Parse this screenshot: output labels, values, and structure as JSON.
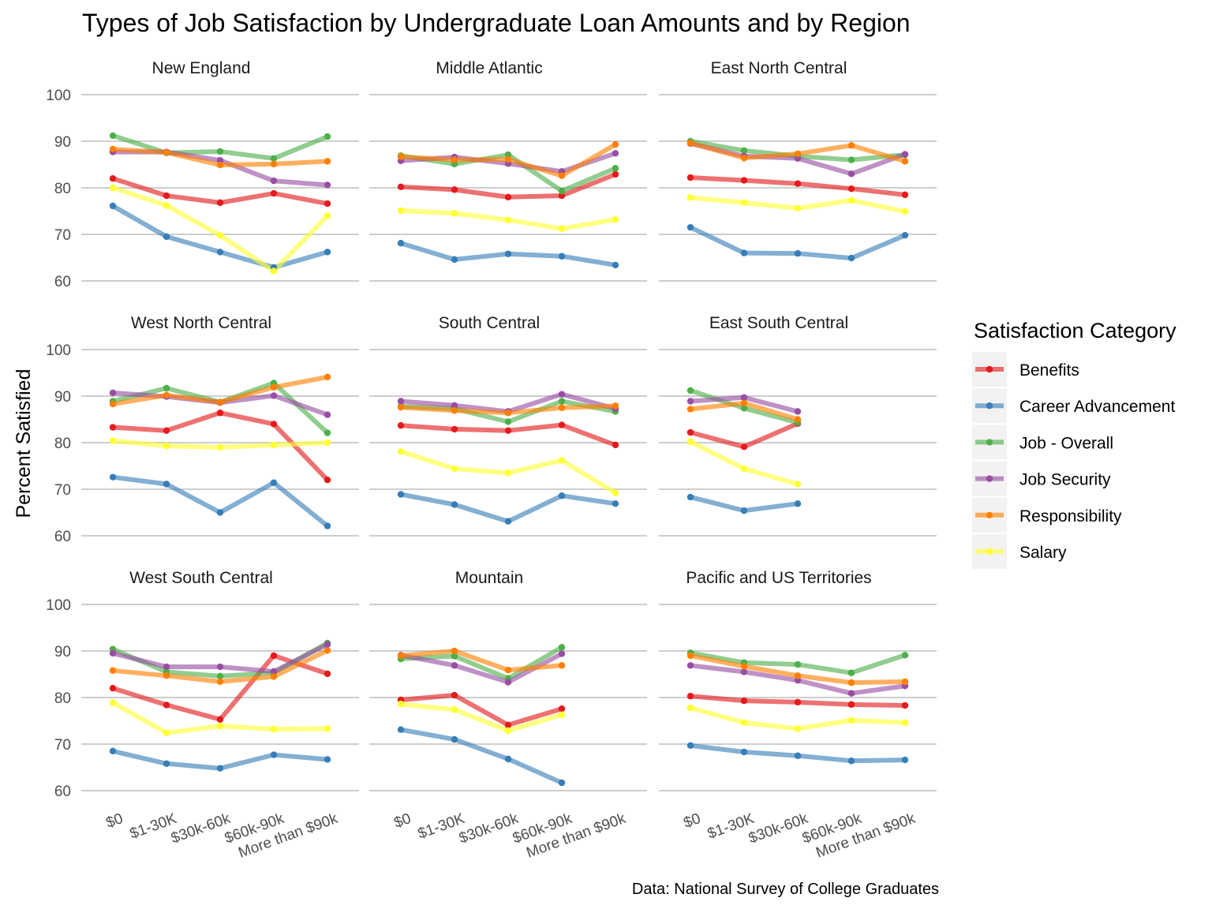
{
  "chart_data": {
    "type": "line",
    "title": "Types of Job Satisfaction by Undergraduate Loan Amounts and by Region",
    "ylabel": "Percent Satisfied",
    "xlabel": "",
    "caption": "Data: National Survey of College Graduates",
    "ylim": [
      60,
      100
    ],
    "yticks": [
      60,
      70,
      80,
      90,
      100
    ],
    "categories": [
      "$0",
      "$1-30K",
      "$30k-60k",
      "$60k-90k",
      "More than $90k"
    ],
    "legend": {
      "title": "Satisfaction Category",
      "position": "right",
      "items": [
        {
          "name": "Benefits",
          "color": "#e41a1c"
        },
        {
          "name": "Career Advancement",
          "color": "#377eb8"
        },
        {
          "name": "Job - Overall",
          "color": "#4daf4a"
        },
        {
          "name": "Job Security",
          "color": "#984ea3"
        },
        {
          "name": "Responsibility",
          "color": "#ff7f00"
        },
        {
          "name": "Salary",
          "color": "#ffff33"
        }
      ]
    },
    "grid": "horizontal major",
    "panels": [
      {
        "region": "New England",
        "series": {
          "Benefits": [
            82.0,
            78.3,
            76.8,
            78.8,
            76.6
          ],
          "Career Advancement": [
            76.1,
            69.5,
            66.2,
            62.9,
            66.2
          ],
          "Job - Overall": [
            91.2,
            87.5,
            87.8,
            86.3,
            91.0
          ],
          "Job Security": [
            87.7,
            87.7,
            85.9,
            81.5,
            80.6
          ],
          "Responsibility": [
            88.3,
            87.6,
            84.9,
            85.1,
            85.7
          ],
          "Salary": [
            80.0,
            76.2,
            69.8,
            62.1,
            74.0
          ]
        }
      },
      {
        "region": "Middle Atlantic",
        "series": {
          "Benefits": [
            80.2,
            79.6,
            78.0,
            78.3,
            82.9
          ],
          "Career Advancement": [
            68.1,
            64.6,
            65.8,
            65.3,
            63.4
          ],
          "Job - Overall": [
            86.9,
            85.1,
            87.1,
            79.3,
            84.2
          ],
          "Job Security": [
            85.8,
            86.6,
            85.2,
            83.5,
            87.4
          ],
          "Responsibility": [
            86.7,
            86.0,
            86.1,
            82.6,
            89.3
          ],
          "Salary": [
            75.1,
            74.5,
            73.1,
            71.2,
            73.2
          ]
        }
      },
      {
        "region": "East North Central",
        "series": {
          "Benefits": [
            82.2,
            81.6,
            80.9,
            79.8,
            78.5
          ],
          "Career Advancement": [
            71.5,
            66.0,
            65.9,
            64.9,
            69.8
          ],
          "Job - Overall": [
            90.0,
            88.0,
            86.8,
            86.0,
            87.1
          ],
          "Job Security": [
            89.5,
            86.8,
            86.3,
            83.0,
            87.2
          ],
          "Responsibility": [
            89.6,
            86.4,
            87.3,
            89.1,
            85.7
          ],
          "Salary": [
            77.9,
            76.8,
            75.6,
            77.3,
            74.9
          ]
        }
      },
      {
        "region": "West North Central",
        "series": {
          "Benefits": [
            83.3,
            82.6,
            86.4,
            84.0,
            72.0
          ],
          "Career Advancement": [
            72.6,
            71.1,
            65.0,
            71.4,
            62.1
          ],
          "Job - Overall": [
            88.9,
            91.7,
            88.7,
            92.8,
            82.1
          ],
          "Job Security": [
            90.7,
            89.9,
            88.6,
            90.1,
            86.0
          ],
          "Responsibility": [
            88.3,
            90.2,
            88.7,
            91.9,
            94.1
          ],
          "Salary": [
            80.4,
            79.3,
            79.0,
            79.5,
            80.0
          ]
        }
      },
      {
        "region": "South Central",
        "series": {
          "Benefits": [
            83.7,
            82.9,
            82.6,
            83.8,
            79.5
          ],
          "Career Advancement": [
            68.9,
            66.7,
            63.1,
            68.6,
            66.9
          ],
          "Job - Overall": [
            87.8,
            87.3,
            84.5,
            88.9,
            86.7
          ],
          "Job Security": [
            88.9,
            88.0,
            86.7,
            90.4,
            87.3
          ],
          "Responsibility": [
            87.6,
            86.9,
            86.4,
            87.5,
            87.9
          ],
          "Salary": [
            78.1,
            74.4,
            73.5,
            76.2,
            69.2
          ]
        }
      },
      {
        "region": "East South Central",
        "series": {
          "Benefits": [
            82.2,
            79.1,
            84.1
          ],
          "Career Advancement": [
            68.3,
            65.4,
            66.9
          ],
          "Job - Overall": [
            91.2,
            87.4,
            84.3
          ],
          "Job Security": [
            88.9,
            89.7,
            86.7
          ],
          "Responsibility": [
            87.2,
            88.5,
            85.0
          ],
          "Salary": [
            80.2,
            74.4,
            71.1
          ]
        }
      },
      {
        "region": "West South Central",
        "series": {
          "Benefits": [
            82.0,
            78.4,
            75.3,
            89.0,
            85.1
          ],
          "Career Advancement": [
            68.5,
            65.8,
            64.8,
            67.7,
            66.7
          ],
          "Job - Overall": [
            90.4,
            85.5,
            84.6,
            85.3,
            91.7
          ],
          "Job Security": [
            89.5,
            86.6,
            86.6,
            85.6,
            91.4
          ],
          "Responsibility": [
            85.8,
            84.7,
            83.4,
            84.5,
            90.1
          ],
          "Salary": [
            78.9,
            72.4,
            73.9,
            73.2,
            73.3
          ]
        }
      },
      {
        "region": "Mountain",
        "series": {
          "Benefits": [
            79.5,
            80.5,
            74.1,
            77.6
          ],
          "Career Advancement": [
            73.1,
            71.0,
            66.8,
            61.7
          ],
          "Job - Overall": [
            88.3,
            88.9,
            84.1,
            90.8
          ],
          "Job Security": [
            89.1,
            86.9,
            83.3,
            89.4
          ],
          "Responsibility": [
            89.0,
            90.0,
            85.9,
            86.9
          ],
          "Salary": [
            78.6,
            77.4,
            72.9,
            76.3
          ]
        }
      },
      {
        "region": "Pacific and US Territories",
        "series": {
          "Benefits": [
            80.3,
            79.3,
            79.0,
            78.5,
            78.3
          ],
          "Career Advancement": [
            69.7,
            68.3,
            67.5,
            66.4,
            66.6
          ],
          "Job - Overall": [
            89.6,
            87.5,
            87.1,
            85.3,
            89.1
          ],
          "Job Security": [
            86.9,
            85.5,
            83.7,
            80.9,
            82.5
          ],
          "Responsibility": [
            89.0,
            86.7,
            84.7,
            83.2,
            83.4
          ],
          "Salary": [
            77.8,
            74.6,
            73.3,
            75.1,
            74.6
          ]
        }
      }
    ]
  }
}
